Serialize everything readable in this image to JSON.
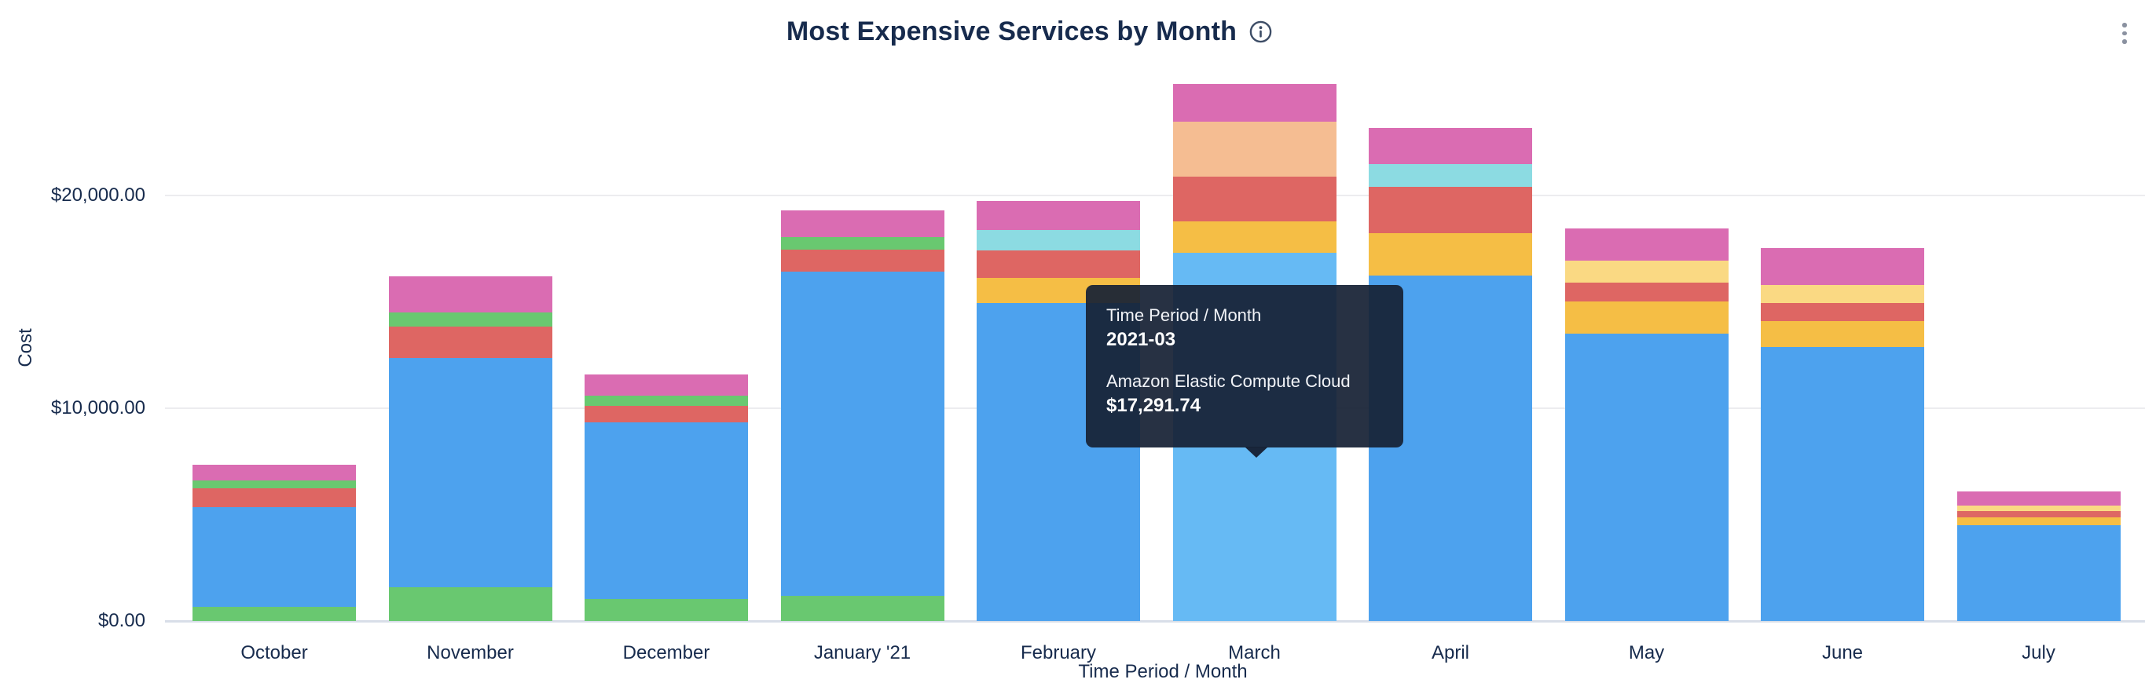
{
  "header": {
    "title": "Most Expensive Services by Month"
  },
  "icons": {
    "info": "info-icon",
    "menu": "kebab-menu-icon"
  },
  "tooltip": {
    "header_label": "Time Period / Month",
    "header_value": "2021-03",
    "series_label": "Amazon Elastic Compute Cloud",
    "series_value": "$17,291.74"
  },
  "chart_data": {
    "type": "bar",
    "stacked": true,
    "title": "Most Expensive Services by Month",
    "xlabel": "Time Period / Month",
    "ylabel": "Cost",
    "ylim": [
      0,
      26000
    ],
    "grid": "horizontal",
    "legend": "none",
    "yticks": [
      {
        "label": "$0.00",
        "value": 0
      },
      {
        "label": "$10,000.00",
        "value": 10000
      },
      {
        "label": "$20,000.00",
        "value": 20000
      }
    ],
    "categories": [
      "October",
      "November",
      "December",
      "January '21",
      "February",
      "March",
      "April",
      "May",
      "June",
      "July"
    ],
    "highlighted_category": "March",
    "blue_series_name": "Amazon Elastic Compute Cloud",
    "colors": {
      "blue": "#4DA2EE",
      "blue_highlight": "#66BAF4",
      "green": "#69C870",
      "red": "#DE6663",
      "pink": "#DA6CB2",
      "yellow": "#F5BE45",
      "light_yellow": "#FAD983",
      "cyan": "#8CDBE2",
      "peach": "#F5BD92"
    },
    "bars": [
      {
        "month": "October",
        "highlighted": false,
        "segments": [
          {
            "color": "green",
            "value": 680
          },
          {
            "color": "blue",
            "value": 4676
          },
          {
            "color": "red",
            "value": 897
          },
          {
            "color": "green",
            "value": 369
          },
          {
            "color": "pink",
            "value": 738
          }
        ]
      },
      {
        "month": "November",
        "highlighted": false,
        "segments": [
          {
            "color": "green",
            "value": 1598
          },
          {
            "color": "blue",
            "value": 10764
          },
          {
            "color": "red",
            "value": 1476
          },
          {
            "color": "green",
            "value": 676
          },
          {
            "color": "pink",
            "value": 1697
          }
        ]
      },
      {
        "month": "December",
        "highlighted": false,
        "segments": [
          {
            "color": "green",
            "value": 1022
          },
          {
            "color": "blue",
            "value": 8326
          },
          {
            "color": "red",
            "value": 775
          },
          {
            "color": "green",
            "value": 469
          },
          {
            "color": "pink",
            "value": 1008
          }
        ]
      },
      {
        "month": "January '21",
        "highlighted": false,
        "segments": [
          {
            "color": "green",
            "value": 1181
          },
          {
            "color": "blue",
            "value": 15240
          },
          {
            "color": "red",
            "value": 1033
          },
          {
            "color": "green",
            "value": 594
          },
          {
            "color": "pink",
            "value": 1255
          }
        ]
      },
      {
        "month": "February",
        "highlighted": false,
        "segments": [
          {
            "color": "blue",
            "value": 14956
          },
          {
            "color": "yellow",
            "value": 1159
          },
          {
            "color": "red",
            "value": 1292
          },
          {
            "color": "cyan",
            "value": 960
          },
          {
            "color": "pink",
            "value": 1377
          }
        ]
      },
      {
        "month": "March",
        "highlighted": true,
        "segments": [
          {
            "color": "blue",
            "value": 17291.74
          },
          {
            "color": "yellow",
            "value": 1476
          },
          {
            "color": "red",
            "value": 2126
          },
          {
            "color": "peach",
            "value": 2583
          },
          {
            "color": "pink",
            "value": 1749
          }
        ]
      },
      {
        "month": "April",
        "highlighted": false,
        "segments": [
          {
            "color": "blue",
            "value": 16236
          },
          {
            "color": "yellow",
            "value": 2004
          },
          {
            "color": "red",
            "value": 2177
          },
          {
            "color": "cyan",
            "value": 1048
          },
          {
            "color": "pink",
            "value": 1697
          }
        ]
      },
      {
        "month": "May",
        "highlighted": false,
        "segments": [
          {
            "color": "blue",
            "value": 13505
          },
          {
            "color": "yellow",
            "value": 1513
          },
          {
            "color": "red",
            "value": 886
          },
          {
            "color": "light_yellow",
            "value": 1044
          },
          {
            "color": "pink",
            "value": 1502
          }
        ]
      },
      {
        "month": "June",
        "highlighted": false,
        "segments": [
          {
            "color": "blue",
            "value": 12889
          },
          {
            "color": "yellow",
            "value": 1207
          },
          {
            "color": "red",
            "value": 849
          },
          {
            "color": "light_yellow",
            "value": 860
          },
          {
            "color": "pink",
            "value": 1723
          }
        ]
      },
      {
        "month": "July",
        "highlighted": false,
        "segments": [
          {
            "color": "blue",
            "value": 4491
          },
          {
            "color": "yellow",
            "value": 369
          },
          {
            "color": "red",
            "value": 306
          },
          {
            "color": "light_yellow",
            "value": 258
          },
          {
            "color": "pink",
            "value": 675
          }
        ]
      }
    ]
  }
}
